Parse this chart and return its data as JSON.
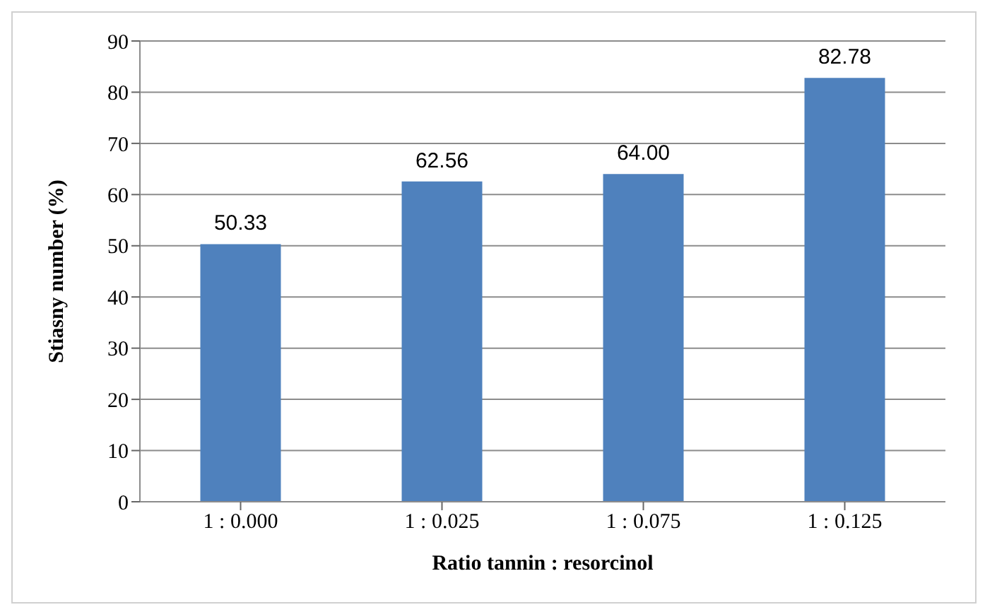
{
  "chart_data": {
    "type": "bar",
    "xlabel": "Ratio tannin : resorcinol",
    "ylabel": "Stiasny number (%)",
    "categories": [
      "1 : 0.000",
      "1 : 0.025",
      "1 : 0.075",
      "1 : 0.125"
    ],
    "values": [
      50.33,
      62.56,
      64.0,
      82.78
    ],
    "value_labels": [
      "50.33",
      "62.56",
      "64.00",
      "82.78"
    ],
    "color": "#4f81bd",
    "ylim": [
      0,
      90
    ],
    "yticks": [
      0,
      10,
      20,
      30,
      40,
      50,
      60,
      70,
      80,
      90
    ],
    "grid": "y"
  }
}
